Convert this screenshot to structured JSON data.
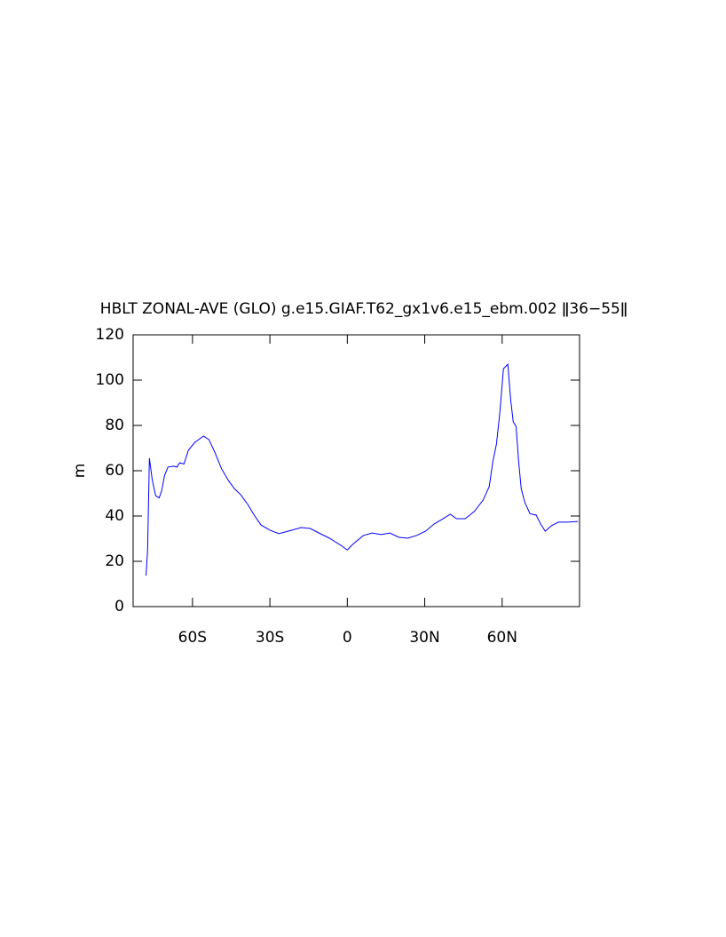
{
  "chart_data": {
    "type": "line",
    "title": "HBLT ZONAL-AVE (GLO) g.e15.GIAF.T62_gx1v6.e15_ebm.002 ǁ36−55ǁ",
    "y_label": "m",
    "x": [
      -78,
      -77.4,
      -76.7,
      -75.6,
      -74.3,
      -72.9,
      -71.9,
      -70.8,
      -69.5,
      -67.4,
      -66,
      -65,
      -63.3,
      -61.6,
      -59.1,
      -55.7,
      -53.6,
      -51.2,
      -48.8,
      -46.1,
      -43.7,
      -41.3,
      -38.5,
      -36.1,
      -33.4,
      -29.9,
      -26.5,
      -23,
      -17.9,
      -14.4,
      -11,
      -6.9,
      -2.4,
      0,
      2.1,
      6.2,
      9.6,
      13.1,
      16.5,
      20,
      23.4,
      26.8,
      30.3,
      33.7,
      37.1,
      39.9,
      42.3,
      45.7,
      49.2,
      52.6,
      55,
      56.4,
      57.8,
      59.1,
      60.5,
      62.2,
      63.3,
      64.3,
      65.4,
      66.4,
      67.4,
      68.8,
      70.8,
      73.2,
      74.9,
      76.7,
      79.1,
      81.8,
      85.3,
      89.4
    ],
    "series": [
      {
        "name": "HBLT",
        "color": "#0000ff",
        "values": [
          13.7,
          24.7,
          65.5,
          56,
          49,
          48,
          51.4,
          58,
          61.6,
          62,
          61.6,
          63.5,
          63,
          69,
          72.5,
          75.3,
          73.7,
          67.8,
          61,
          55.7,
          52,
          49.4,
          45,
          40.4,
          36,
          33.7,
          32.2,
          33.3,
          34.9,
          34.5,
          32.5,
          30.2,
          27,
          25,
          27.5,
          31.4,
          32.5,
          31.8,
          32.5,
          30.6,
          30.2,
          31.4,
          33.3,
          36.5,
          38.8,
          40.8,
          38.8,
          38.8,
          42,
          47,
          53,
          64,
          71.8,
          85.5,
          105,
          107,
          91.4,
          81.6,
          79.6,
          64,
          52,
          46,
          41,
          40.4,
          36.5,
          33.3,
          35.7,
          37.3,
          37.3,
          37.6
        ]
      }
    ],
    "xlim": [
      -83,
      90
    ],
    "ylim": [
      0,
      120
    ],
    "xticks": [
      {
        "value": -60,
        "label": "60S"
      },
      {
        "value": -30,
        "label": "30S"
      },
      0,
      {
        "value": 30,
        "label": "30N"
      },
      {
        "value": 60,
        "label": "60N"
      }
    ],
    "yticks": [
      0,
      20,
      40,
      60,
      80,
      100,
      120
    ]
  }
}
